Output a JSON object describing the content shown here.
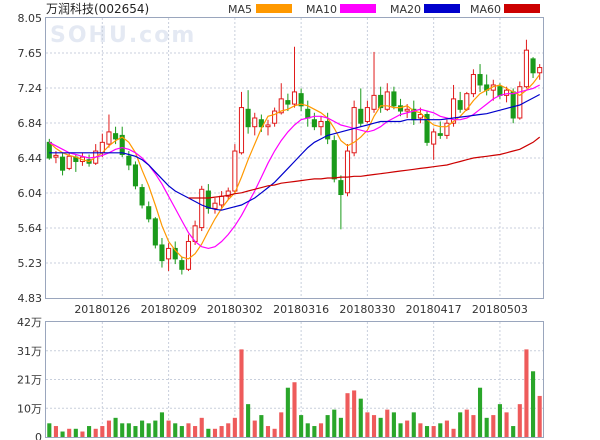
{
  "chart_data": [
    {
      "type": "candlestick",
      "title": "万润科技(002654)",
      "watermark": "SOHU.com",
      "legend": [
        {
          "name": "MA5",
          "color": "#ff9900"
        },
        {
          "name": "MA10",
          "color": "#ff00ff"
        },
        {
          "name": "MA20",
          "color": "#0000cc"
        },
        {
          "name": "MA60",
          "color": "#cc0000"
        }
      ],
      "up_color": "#e01b1b",
      "down_color": "#1a9a1a",
      "ylim": [
        4.83,
        8.05
      ],
      "y_ticks": [
        "8.05",
        "7.65",
        "7.24",
        "6.84",
        "6.44",
        "6.04",
        "5.64",
        "5.23",
        "4.83"
      ],
      "x_ticks": [
        {
          "index": 8,
          "label": "20180126"
        },
        {
          "index": 18,
          "label": "20180209"
        },
        {
          "index": 28,
          "label": "20180302"
        },
        {
          "index": 38,
          "label": "20180316"
        },
        {
          "index": 48,
          "label": "20180330"
        },
        {
          "index": 58,
          "label": "20180417"
        },
        {
          "index": 68,
          "label": "20180503"
        }
      ],
      "ohlc": [
        [
          6.62,
          6.66,
          6.42,
          6.44
        ],
        [
          6.45,
          6.52,
          6.38,
          6.47
        ],
        [
          6.45,
          6.5,
          6.24,
          6.3
        ],
        [
          6.32,
          6.5,
          6.3,
          6.46
        ],
        [
          6.45,
          6.48,
          6.28,
          6.4
        ],
        [
          6.4,
          6.5,
          6.35,
          6.45
        ],
        [
          6.42,
          6.48,
          6.34,
          6.38
        ],
        [
          6.38,
          6.6,
          6.36,
          6.52
        ],
        [
          6.5,
          6.72,
          6.45,
          6.62
        ],
        [
          6.6,
          6.94,
          6.56,
          6.74
        ],
        [
          6.72,
          6.8,
          6.6,
          6.66
        ],
        [
          6.7,
          6.8,
          6.45,
          6.48
        ],
        [
          6.46,
          6.52,
          6.3,
          6.36
        ],
        [
          6.36,
          6.4,
          6.08,
          6.12
        ],
        [
          6.1,
          6.14,
          5.86,
          5.9
        ],
        [
          5.88,
          5.94,
          5.7,
          5.74
        ],
        [
          5.74,
          5.76,
          5.4,
          5.44
        ],
        [
          5.44,
          5.52,
          5.18,
          5.26
        ],
        [
          5.28,
          5.46,
          5.14,
          5.4
        ],
        [
          5.4,
          5.48,
          5.22,
          5.28
        ],
        [
          5.26,
          5.3,
          5.1,
          5.16
        ],
        [
          5.16,
          5.56,
          5.14,
          5.48
        ],
        [
          5.48,
          5.72,
          5.44,
          5.66
        ],
        [
          5.64,
          6.12,
          5.6,
          6.08
        ],
        [
          6.06,
          6.14,
          5.8,
          5.86
        ],
        [
          5.86,
          5.98,
          5.8,
          5.92
        ],
        [
          5.9,
          6.06,
          5.84,
          6.0
        ],
        [
          6.0,
          6.1,
          5.96,
          6.06
        ],
        [
          6.06,
          6.6,
          6.04,
          6.52
        ],
        [
          6.5,
          7.2,
          6.48,
          7.02
        ],
        [
          7.0,
          7.22,
          6.72,
          6.8
        ],
        [
          6.8,
          6.96,
          6.7,
          6.9
        ],
        [
          6.88,
          6.94,
          6.74,
          6.8
        ],
        [
          6.8,
          6.88,
          6.7,
          6.82
        ],
        [
          6.84,
          7.02,
          6.8,
          6.98
        ],
        [
          6.96,
          7.3,
          6.94,
          7.12
        ],
        [
          7.1,
          7.18,
          6.98,
          7.06
        ],
        [
          7.06,
          7.72,
          7.02,
          7.2
        ],
        [
          7.18,
          7.24,
          6.98,
          7.04
        ],
        [
          7.0,
          7.1,
          6.8,
          6.9
        ],
        [
          6.88,
          6.96,
          6.76,
          6.8
        ],
        [
          6.8,
          6.92,
          6.7,
          6.86
        ],
        [
          6.86,
          6.96,
          6.6,
          6.66
        ],
        [
          6.64,
          6.7,
          6.16,
          6.2
        ],
        [
          6.18,
          6.24,
          5.62,
          6.02
        ],
        [
          6.04,
          6.6,
          6.0,
          6.52
        ],
        [
          6.5,
          7.1,
          6.46,
          7.02
        ],
        [
          7.0,
          7.24,
          6.8,
          6.84
        ],
        [
          6.86,
          7.1,
          6.84,
          7.02
        ],
        [
          7.0,
          7.66,
          6.96,
          7.16
        ],
        [
          7.16,
          7.26,
          6.96,
          7.02
        ],
        [
          7.0,
          7.3,
          6.98,
          7.2
        ],
        [
          7.2,
          7.26,
          7.0,
          7.04
        ],
        [
          7.04,
          7.12,
          6.92,
          6.98
        ],
        [
          6.98,
          7.06,
          6.9,
          7.0
        ],
        [
          7.0,
          7.1,
          6.82,
          6.88
        ],
        [
          6.9,
          7.02,
          6.84,
          6.94
        ],
        [
          6.94,
          6.98,
          6.58,
          6.62
        ],
        [
          6.6,
          6.78,
          6.42,
          6.74
        ],
        [
          6.72,
          6.86,
          6.66,
          6.7
        ],
        [
          6.7,
          6.88,
          6.66,
          6.84
        ],
        [
          6.84,
          7.28,
          6.8,
          7.12
        ],
        [
          7.1,
          7.2,
          6.96,
          7.0
        ],
        [
          7.0,
          7.2,
          6.98,
          7.18
        ],
        [
          7.18,
          7.46,
          7.14,
          7.4
        ],
        [
          7.4,
          7.52,
          7.2,
          7.28
        ],
        [
          7.28,
          7.4,
          7.16,
          7.22
        ],
        [
          7.22,
          7.34,
          7.1,
          7.28
        ],
        [
          7.26,
          7.3,
          7.12,
          7.16
        ],
        [
          7.16,
          7.26,
          7.08,
          7.22
        ],
        [
          7.2,
          7.24,
          6.84,
          6.9
        ],
        [
          6.9,
          7.32,
          6.88,
          7.26
        ],
        [
          7.26,
          7.8,
          7.24,
          7.68
        ],
        [
          7.58,
          7.6,
          7.36,
          7.42
        ],
        [
          7.42,
          7.52,
          7.34,
          7.48
        ]
      ],
      "ma5": [
        6.62,
        6.55,
        6.5,
        6.47,
        6.45,
        6.42,
        6.4,
        6.45,
        6.5,
        6.58,
        6.64,
        6.68,
        6.62,
        6.5,
        6.3,
        6.12,
        5.9,
        5.66,
        5.48,
        5.38,
        5.3,
        5.28,
        5.34,
        5.45,
        5.6,
        5.74,
        5.86,
        5.96,
        6.04,
        6.22,
        6.42,
        6.6,
        6.78,
        6.92,
        6.94,
        6.98,
        7.0,
        7.04,
        7.06,
        7.04,
        7.0,
        6.96,
        6.9,
        6.78,
        6.64,
        6.58,
        6.62,
        6.68,
        6.76,
        6.92,
        7.04,
        7.04,
        7.02,
        7.02,
        7.04,
        6.98,
        6.96,
        6.88,
        6.82,
        6.8,
        6.8,
        6.86,
        6.92,
        7.0,
        7.1,
        7.18,
        7.22,
        7.26,
        7.28,
        7.24,
        7.2,
        7.16,
        7.22,
        7.3,
        7.4
      ],
      "ma10": [
        6.62,
        6.58,
        6.54,
        6.5,
        6.48,
        6.46,
        6.44,
        6.45,
        6.47,
        6.5,
        6.54,
        6.56,
        6.54,
        6.5,
        6.44,
        6.36,
        6.26,
        6.14,
        6.0,
        5.86,
        5.72,
        5.58,
        5.48,
        5.42,
        5.4,
        5.42,
        5.48,
        5.56,
        5.66,
        5.78,
        5.92,
        6.06,
        6.22,
        6.38,
        6.52,
        6.64,
        6.74,
        6.82,
        6.88,
        6.9,
        6.92,
        6.92,
        6.9,
        6.86,
        6.82,
        6.8,
        6.78,
        6.76,
        6.74,
        6.76,
        6.8,
        6.86,
        6.9,
        6.94,
        6.96,
        6.98,
        7.0,
        6.98,
        6.96,
        6.92,
        6.9,
        6.88,
        6.88,
        6.9,
        6.94,
        7.0,
        7.06,
        7.12,
        7.16,
        7.18,
        7.18,
        7.2,
        7.22,
        7.24,
        7.28
      ],
      "ma20": [
        6.5,
        6.5,
        6.5,
        6.5,
        6.5,
        6.5,
        6.5,
        6.5,
        6.5,
        6.5,
        6.5,
        6.5,
        6.48,
        6.46,
        6.42,
        6.36,
        6.28,
        6.2,
        6.12,
        6.06,
        6.02,
        5.98,
        5.94,
        5.9,
        5.87,
        5.85,
        5.84,
        5.86,
        5.88,
        5.9,
        5.94,
        5.98,
        6.04,
        6.1,
        6.16,
        6.24,
        6.32,
        6.4,
        6.48,
        6.56,
        6.62,
        6.66,
        6.7,
        6.72,
        6.74,
        6.76,
        6.78,
        6.8,
        6.82,
        6.84,
        6.86,
        6.86,
        6.86,
        6.86,
        6.88,
        6.88,
        6.88,
        6.88,
        6.88,
        6.88,
        6.89,
        6.9,
        6.91,
        6.92,
        6.93,
        6.94,
        6.95,
        6.97,
        6.99,
        7.01,
        7.03,
        7.05,
        7.09,
        7.13,
        7.17
      ],
      "ma60": [
        null,
        null,
        null,
        null,
        null,
        null,
        null,
        null,
        null,
        null,
        null,
        null,
        null,
        null,
        null,
        null,
        null,
        null,
        null,
        null,
        null,
        5.98,
        5.98,
        5.98,
        5.98,
        5.99,
        6.0,
        6.01,
        6.03,
        6.04,
        6.06,
        6.08,
        6.1,
        6.12,
        6.13,
        6.15,
        6.16,
        6.17,
        6.18,
        6.19,
        6.2,
        6.2,
        6.21,
        6.21,
        6.22,
        6.22,
        6.23,
        6.23,
        6.24,
        6.25,
        6.26,
        6.27,
        6.28,
        6.29,
        6.3,
        6.31,
        6.32,
        6.33,
        6.34,
        6.35,
        6.36,
        6.38,
        6.4,
        6.42,
        6.44,
        6.45,
        6.46,
        6.47,
        6.48,
        6.5,
        6.52,
        6.54,
        6.58,
        6.62,
        6.68
      ]
    },
    {
      "type": "bar",
      "title": "",
      "ylabel": "",
      "y_ticks": [
        "42万",
        "31万",
        "21万",
        "10万",
        "0"
      ],
      "ylim": [
        0,
        42
      ],
      "values": [
        5,
        4,
        2,
        3,
        3,
        2,
        4,
        3,
        4,
        6,
        7,
        5,
        5,
        4,
        6,
        5,
        6,
        9,
        6,
        5,
        4,
        5,
        4,
        7,
        3,
        3,
        4,
        5,
        7,
        32,
        12,
        6,
        8,
        4,
        3,
        9,
        18,
        20,
        8,
        5,
        4,
        5,
        8,
        10,
        7,
        16,
        17,
        14,
        9,
        8,
        7,
        10,
        9,
        5,
        6,
        9,
        5,
        4,
        4,
        5,
        6,
        3,
        9,
        10,
        8,
        18,
        7,
        8,
        12,
        9,
        4,
        12,
        32,
        24,
        15
      ]
    }
  ]
}
